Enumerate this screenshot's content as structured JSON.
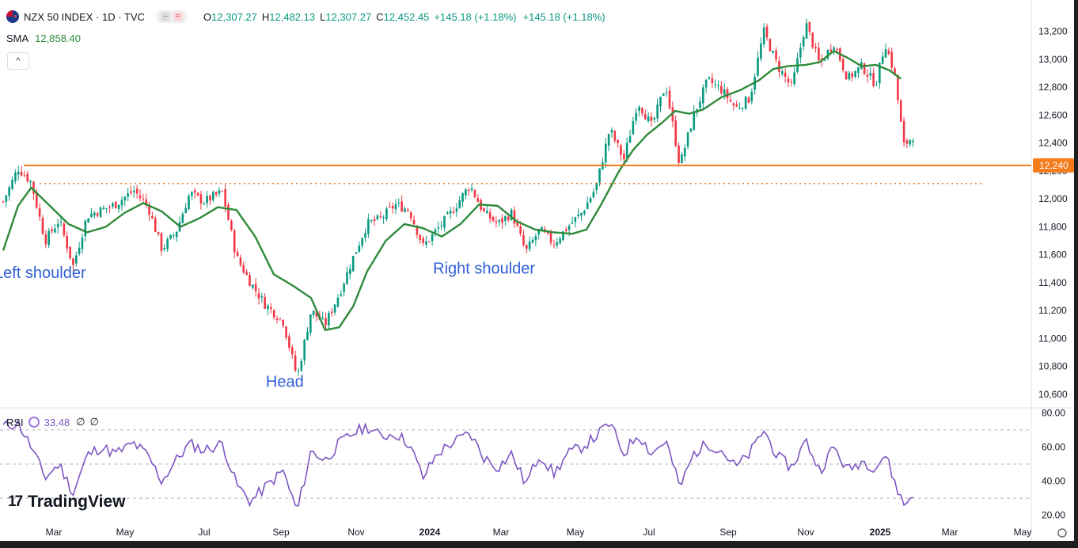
{
  "header": {
    "symbol": "NZX 50 INDEX · 1D · TVC",
    "ohlc": [
      {
        "k": "O",
        "v": "12,307.27"
      },
      {
        "k": "H",
        "v": "12,482.13"
      },
      {
        "k": "L",
        "v": "12,307.27"
      },
      {
        "k": "C",
        "v": "12,452.45"
      }
    ],
    "change": "+145.18 (+1.18%)",
    "change2": "+145.18 (+1.18%)",
    "sma_label": "SMA",
    "sma_value": "12,858.40",
    "collapse_icon": "chevron-up-icon"
  },
  "rsi": {
    "label": "RSI",
    "value": "33.48",
    "extra1": "∅",
    "extra2": "∅"
  },
  "brand": "TradingView",
  "colors": {
    "up": "#089981",
    "down": "#f23645",
    "sma": "#2e8b3a",
    "rsi": "#7e57c2",
    "level": "#f57c1c",
    "annotation": "#2f5fd6"
  },
  "chart_data": {
    "type": "candlestick",
    "price_axis": {
      "ticks": [
        "13,200",
        "13,000",
        "12,800",
        "12,600",
        "12,400",
        "12,200",
        "12,000",
        "11,800",
        "11,600",
        "11,400",
        "11,200",
        "11,000",
        "10,800",
        "10,600"
      ],
      "range": [
        10520,
        13300
      ]
    },
    "time_axis": [
      "Mar",
      "May",
      "Jul",
      "Sep",
      "Nov",
      "2024",
      "Mar",
      "May",
      "Jul",
      "Sep",
      "Nov",
      "2025",
      "Mar",
      "May"
    ],
    "horizontal_level": {
      "value": 12240,
      "label": "12,240"
    },
    "neckline_dotted": {
      "value": 12110
    },
    "annotations": [
      {
        "text": "Left shoulder",
        "t": 0.05,
        "price": 11480
      },
      {
        "text": "Head",
        "t": 0.29,
        "price": 10700
      },
      {
        "text": "Right shoulder",
        "t": 0.52,
        "price": 11510
      }
    ],
    "price_path": [
      [
        0,
        11980
      ],
      [
        0.016,
        12220
      ],
      [
        0.03,
        12120
      ],
      [
        0.045,
        11700
      ],
      [
        0.06,
        11850
      ],
      [
        0.075,
        11520
      ],
      [
        0.09,
        11880
      ],
      [
        0.105,
        11920
      ],
      [
        0.12,
        11960
      ],
      [
        0.14,
        12060
      ],
      [
        0.155,
        11950
      ],
      [
        0.17,
        11640
      ],
      [
        0.185,
        11760
      ],
      [
        0.2,
        12040
      ],
      [
        0.215,
        11980
      ],
      [
        0.235,
        12050
      ],
      [
        0.25,
        11580
      ],
      [
        0.265,
        11400
      ],
      [
        0.28,
        11250
      ],
      [
        0.3,
        11120
      ],
      [
        0.315,
        10720
      ],
      [
        0.33,
        11200
      ],
      [
        0.345,
        11100
      ],
      [
        0.36,
        11320
      ],
      [
        0.375,
        11580
      ],
      [
        0.39,
        11820
      ],
      [
        0.405,
        11860
      ],
      [
        0.42,
        11960
      ],
      [
        0.435,
        11920
      ],
      [
        0.45,
        11660
      ],
      [
        0.465,
        11780
      ],
      [
        0.48,
        11900
      ],
      [
        0.5,
        12100
      ],
      [
        0.515,
        11900
      ],
      [
        0.53,
        11820
      ],
      [
        0.545,
        11900
      ],
      [
        0.56,
        11620
      ],
      [
        0.575,
        11780
      ],
      [
        0.59,
        11680
      ],
      [
        0.605,
        11800
      ],
      [
        0.62,
        11900
      ],
      [
        0.635,
        12080
      ],
      [
        0.65,
        12500
      ],
      [
        0.665,
        12280
      ],
      [
        0.68,
        12700
      ],
      [
        0.695,
        12520
      ],
      [
        0.71,
        12820
      ],
      [
        0.725,
        12240
      ],
      [
        0.74,
        12600
      ],
      [
        0.755,
        12850
      ],
      [
        0.77,
        12780
      ],
      [
        0.785,
        12650
      ],
      [
        0.8,
        12720
      ],
      [
        0.815,
        13200
      ],
      [
        0.83,
        12950
      ],
      [
        0.845,
        12800
      ],
      [
        0.86,
        13260
      ],
      [
        0.875,
        12960
      ],
      [
        0.89,
        13120
      ],
      [
        0.905,
        12860
      ],
      [
        0.92,
        12950
      ],
      [
        0.935,
        12820
      ],
      [
        0.945,
        13120
      ],
      [
        0.955,
        12900
      ],
      [
        0.965,
        12380
      ],
      [
        0.975,
        12450
      ]
    ],
    "sma_path": [
      [
        0,
        11630
      ],
      [
        0.016,
        11950
      ],
      [
        0.03,
        12080
      ],
      [
        0.05,
        11950
      ],
      [
        0.07,
        11820
      ],
      [
        0.09,
        11760
      ],
      [
        0.11,
        11800
      ],
      [
        0.13,
        11900
      ],
      [
        0.15,
        11970
      ],
      [
        0.17,
        11910
      ],
      [
        0.19,
        11800
      ],
      [
        0.21,
        11860
      ],
      [
        0.23,
        11940
      ],
      [
        0.25,
        11920
      ],
      [
        0.27,
        11730
      ],
      [
        0.29,
        11460
      ],
      [
        0.31,
        11380
      ],
      [
        0.33,
        11290
      ],
      [
        0.345,
        11060
      ],
      [
        0.36,
        11080
      ],
      [
        0.375,
        11230
      ],
      [
        0.39,
        11480
      ],
      [
        0.41,
        11700
      ],
      [
        0.43,
        11820
      ],
      [
        0.45,
        11790
      ],
      [
        0.47,
        11730
      ],
      [
        0.49,
        11820
      ],
      [
        0.51,
        11960
      ],
      [
        0.53,
        11950
      ],
      [
        0.55,
        11840
      ],
      [
        0.57,
        11780
      ],
      [
        0.59,
        11760
      ],
      [
        0.61,
        11750
      ],
      [
        0.625,
        11780
      ],
      [
        0.64,
        11950
      ],
      [
        0.66,
        12200
      ],
      [
        0.675,
        12350
      ],
      [
        0.69,
        12460
      ],
      [
        0.705,
        12540
      ],
      [
        0.72,
        12630
      ],
      [
        0.735,
        12610
      ],
      [
        0.75,
        12640
      ],
      [
        0.77,
        12730
      ],
      [
        0.79,
        12780
      ],
      [
        0.81,
        12850
      ],
      [
        0.825,
        12930
      ],
      [
        0.84,
        12950
      ],
      [
        0.86,
        12960
      ],
      [
        0.875,
        12980
      ],
      [
        0.89,
        13060
      ],
      [
        0.905,
        13010
      ],
      [
        0.92,
        12950
      ],
      [
        0.935,
        12960
      ],
      [
        0.95,
        12920
      ],
      [
        0.962,
        12860
      ]
    ],
    "rsi_axis": {
      "ticks": [
        "80.00",
        "60.00",
        "40.00",
        "20.00"
      ],
      "range": [
        18,
        82
      ],
      "bands": [
        70,
        50,
        30
      ]
    },
    "rsi_path": [
      [
        0,
        72
      ],
      [
        0.016,
        74
      ],
      [
        0.03,
        60
      ],
      [
        0.045,
        42
      ],
      [
        0.06,
        50
      ],
      [
        0.075,
        33
      ],
      [
        0.09,
        55
      ],
      [
        0.105,
        60
      ],
      [
        0.12,
        56
      ],
      [
        0.14,
        62
      ],
      [
        0.155,
        55
      ],
      [
        0.17,
        40
      ],
      [
        0.185,
        52
      ],
      [
        0.2,
        62
      ],
      [
        0.215,
        58
      ],
      [
        0.235,
        62
      ],
      [
        0.25,
        38
      ],
      [
        0.265,
        28
      ],
      [
        0.28,
        36
      ],
      [
        0.3,
        46
      ],
      [
        0.315,
        22
      ],
      [
        0.33,
        58
      ],
      [
        0.345,
        52
      ],
      [
        0.36,
        62
      ],
      [
        0.375,
        68
      ],
      [
        0.39,
        72
      ],
      [
        0.405,
        66
      ],
      [
        0.42,
        68
      ],
      [
        0.435,
        62
      ],
      [
        0.45,
        42
      ],
      [
        0.465,
        56
      ],
      [
        0.48,
        62
      ],
      [
        0.5,
        68
      ],
      [
        0.515,
        54
      ],
      [
        0.53,
        48
      ],
      [
        0.545,
        56
      ],
      [
        0.56,
        38
      ],
      [
        0.575,
        56
      ],
      [
        0.59,
        44
      ],
      [
        0.605,
        56
      ],
      [
        0.62,
        60
      ],
      [
        0.635,
        66
      ],
      [
        0.65,
        74
      ],
      [
        0.665,
        56
      ],
      [
        0.68,
        68
      ],
      [
        0.695,
        56
      ],
      [
        0.71,
        64
      ],
      [
        0.725,
        36
      ],
      [
        0.74,
        56
      ],
      [
        0.755,
        62
      ],
      [
        0.77,
        58
      ],
      [
        0.785,
        48
      ],
      [
        0.8,
        56
      ],
      [
        0.815,
        70
      ],
      [
        0.83,
        54
      ],
      [
        0.845,
        48
      ],
      [
        0.86,
        64
      ],
      [
        0.875,
        46
      ],
      [
        0.89,
        60
      ],
      [
        0.905,
        46
      ],
      [
        0.92,
        52
      ],
      [
        0.935,
        48
      ],
      [
        0.945,
        56
      ],
      [
        0.955,
        40
      ],
      [
        0.965,
        26
      ],
      [
        0.975,
        32
      ]
    ]
  }
}
